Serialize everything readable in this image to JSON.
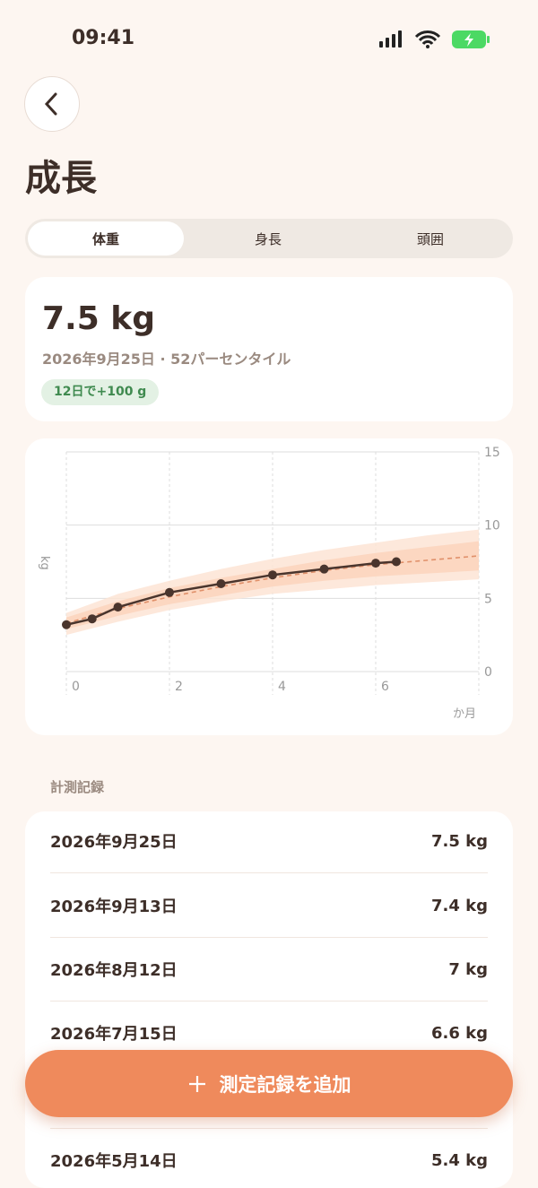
{
  "status_bar": {
    "time": "09:41"
  },
  "header": {
    "title": "成長"
  },
  "tabs": {
    "items": [
      "体重",
      "身長",
      "頭囲"
    ],
    "active": 0
  },
  "summary": {
    "value": "7.5 kg",
    "subtitle": "2026年9月25日 · 52パーセンタイル",
    "change": "12日で+100 g"
  },
  "chart_data": {
    "type": "line",
    "x_label": "か月",
    "y_label": "kg",
    "xlim": [
      0,
      8
    ],
    "xticks": [
      0,
      2,
      4,
      6
    ],
    "ylim": [
      0,
      15
    ],
    "yticks": [
      0,
      5,
      10,
      15
    ],
    "grid": true,
    "percentile_x": [
      0,
      1,
      2,
      3,
      4,
      5,
      6,
      7,
      8
    ],
    "bands": [
      {
        "color": "#fde4d5",
        "upper": [
          4.0,
          5.3,
          6.2,
          7.0,
          7.7,
          8.3,
          8.8,
          9.3,
          9.7
        ],
        "lower": [
          2.5,
          3.4,
          4.2,
          4.8,
          5.3,
          5.6,
          5.9,
          6.1,
          6.3
        ]
      },
      {
        "color": "#fbd3bc",
        "upper": [
          3.7,
          4.8,
          5.7,
          6.4,
          7.0,
          7.6,
          8.1,
          8.5,
          8.9
        ],
        "lower": [
          2.9,
          3.8,
          4.6,
          5.2,
          5.8,
          6.2,
          6.5,
          6.7,
          6.9
        ]
      }
    ],
    "median": {
      "color": "#e0906a",
      "dashed": true,
      "values": [
        3.3,
        4.3,
        5.1,
        5.8,
        6.4,
        6.9,
        7.3,
        7.6,
        7.9
      ]
    },
    "series": [
      {
        "color": "#4a352d",
        "x": [
          0,
          0.5,
          1,
          2,
          3,
          4,
          5,
          6,
          6.4
        ],
        "values": [
          3.2,
          3.6,
          4.4,
          5.4,
          6.0,
          6.6,
          7.0,
          7.4,
          7.5
        ]
      }
    ]
  },
  "records": {
    "title": "計測記録",
    "rows": [
      [
        "2026年9月25日",
        "7.5 kg"
      ],
      [
        "2026年9月13日",
        "7.4 kg"
      ],
      [
        "2026年8月12日",
        "7 kg"
      ],
      [
        "2026年7月15日",
        "6.6 kg"
      ],
      [
        "2026年5月14日",
        "5.4 kg"
      ]
    ]
  },
  "button": {
    "label": "測定記録を追加"
  }
}
